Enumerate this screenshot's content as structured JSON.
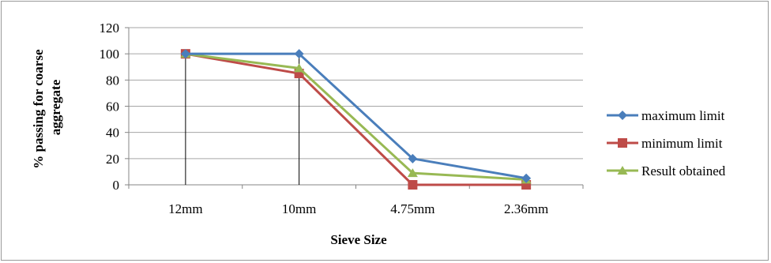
{
  "chart_data": {
    "type": "line",
    "categories": [
      "12mm",
      "10mm",
      "4.75mm",
      "2.36mm"
    ],
    "series": [
      {
        "name": "maximum limit",
        "values": [
          100,
          100,
          20,
          5
        ],
        "color": "#4A7EBB",
        "marker": "diamond"
      },
      {
        "name": "minimum limit",
        "values": [
          100,
          85,
          0,
          0
        ],
        "color": "#BE4B48",
        "marker": "square"
      },
      {
        "name": "Result obtained",
        "values": [
          100,
          89,
          9,
          4
        ],
        "color": "#98B954",
        "marker": "triangle"
      }
    ],
    "xlabel": "Sieve Size",
    "ylabel": "% passing for coarse aggregate",
    "ylim": [
      0,
      120
    ],
    "yticks": [
      0,
      20,
      40,
      60,
      80,
      100,
      120
    ],
    "grid": true,
    "legend": "right",
    "vertical_drop_lines_at": [
      "12mm",
      "10mm"
    ]
  }
}
